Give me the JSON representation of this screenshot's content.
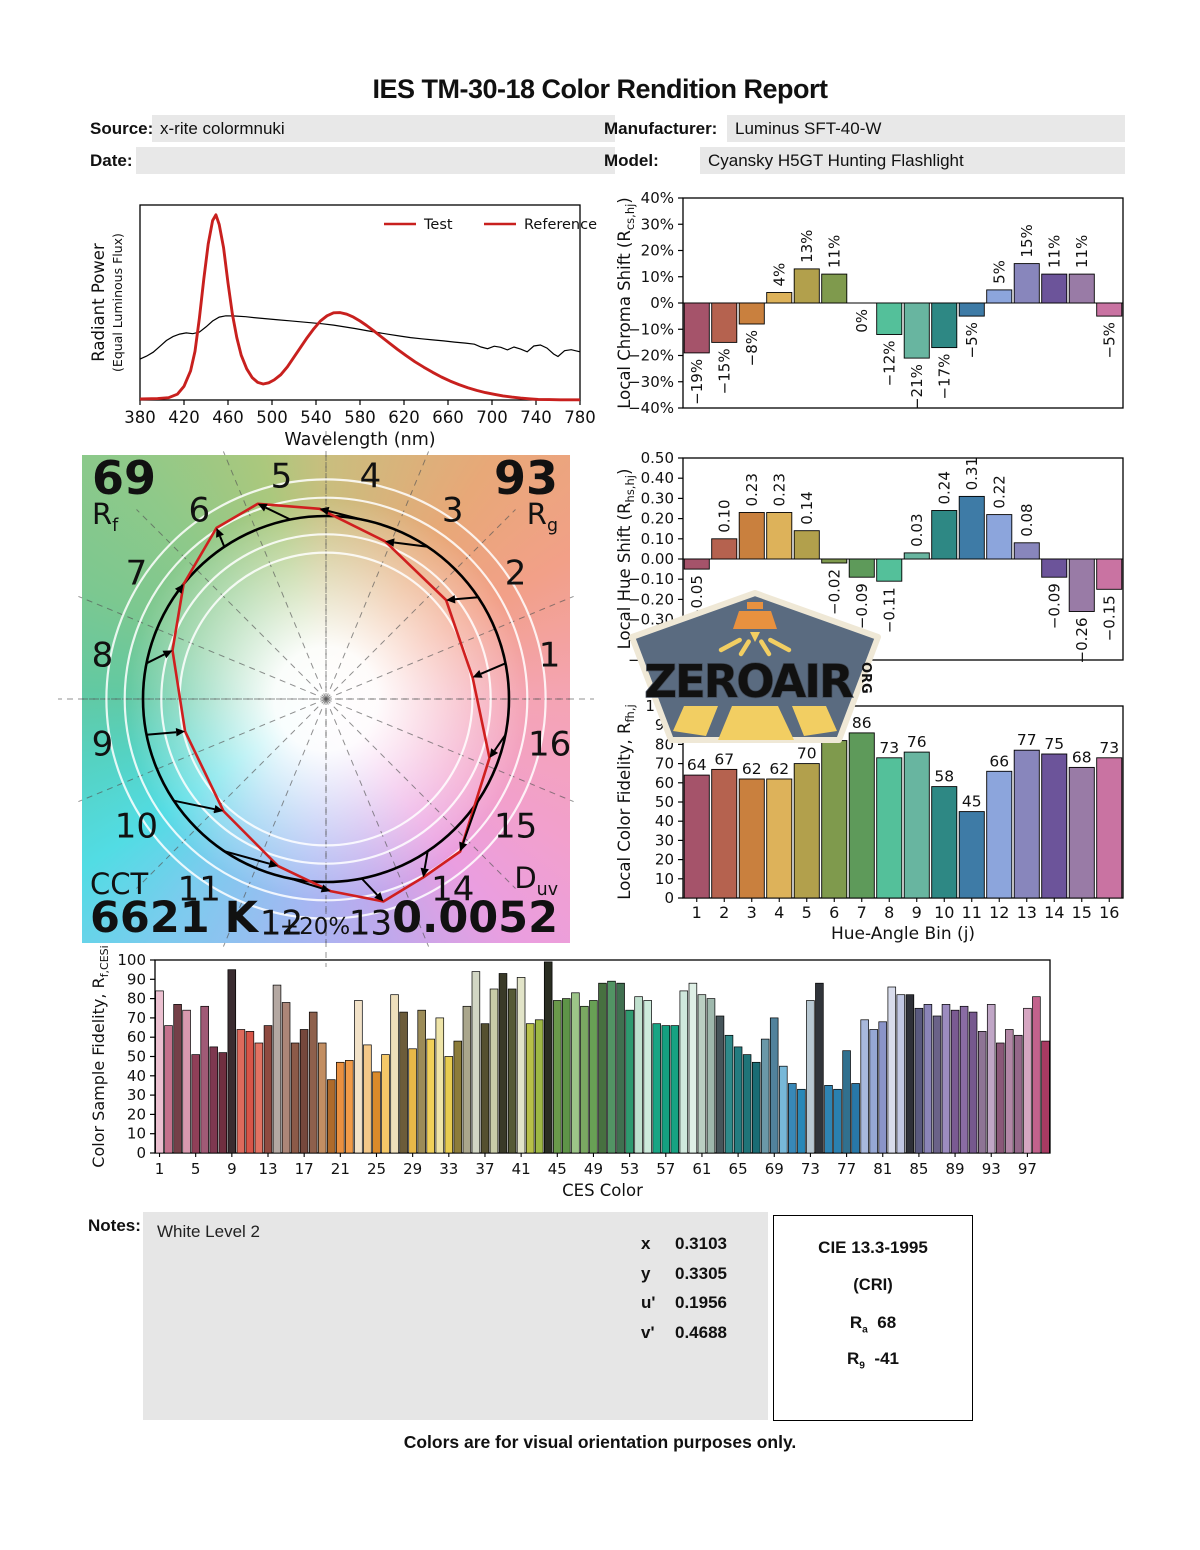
{
  "title": "IES TM-30-18 Color Rendition Report",
  "header": {
    "source_label": "Source:",
    "source_value": "x-rite colormnuki",
    "date_label": "Date:",
    "date_value": "",
    "manufacturer_label": "Manufacturer:",
    "manufacturer_value": "Luminus SFT-40-W",
    "model_label": "Model:",
    "model_value": "Cyansky H5GT Hunting Flashlight"
  },
  "colors": {
    "test_red": "#C8201E",
    "reference_black": "#000000",
    "field_bg": "#E8E8E8",
    "bin_palette": [
      "#A5536A",
      "#B5624F",
      "#C9803E",
      "#DDB25A",
      "#B2A04C",
      "#7F9A4D",
      "#5E9A5A",
      "#54C09A",
      "#68B5A0",
      "#2E8884",
      "#3E7BA6",
      "#8CA5DC",
      "#8886BC",
      "#6C549A",
      "#997BA6",
      "#C973A2"
    ]
  },
  "watermark": {
    "text": "ZEROAIR",
    "org": "ORG",
    "badge_bg": "#5A6B80",
    "badge_border": "#EFE8D6",
    "orange": "#E8913F",
    "yellow": "#F2CE62"
  },
  "chart_data": [
    {
      "name": "spectral_power_distribution",
      "type": "line",
      "xlabel": "Wavelength (nm)",
      "ylabel_line1": "Radiant Power",
      "ylabel_line2": "(Equal Luminous Flux)",
      "xlim": [
        380,
        780
      ],
      "x_ticks": [
        380,
        420,
        460,
        500,
        540,
        580,
        620,
        660,
        700,
        740,
        780
      ],
      "legend": [
        {
          "label": "Test",
          "color": "#C8201E"
        },
        {
          "label": "Reference",
          "color": "#000000"
        }
      ],
      "series": [
        {
          "name": "Test",
          "color": "#C8201E",
          "points": [
            [
              380,
              0.005
            ],
            [
              396,
              0.007
            ],
            [
              406,
              0.012
            ],
            [
              414,
              0.03
            ],
            [
              420,
              0.07
            ],
            [
              426,
              0.15
            ],
            [
              430,
              0.25
            ],
            [
              434,
              0.42
            ],
            [
              438,
              0.62
            ],
            [
              442,
              0.8
            ],
            [
              446,
              0.92
            ],
            [
              449,
              0.95
            ],
            [
              452,
              0.9
            ],
            [
              456,
              0.78
            ],
            [
              460,
              0.6
            ],
            [
              464,
              0.44
            ],
            [
              468,
              0.32
            ],
            [
              472,
              0.23
            ],
            [
              477,
              0.16
            ],
            [
              482,
              0.115
            ],
            [
              487,
              0.09
            ],
            [
              492,
              0.082
            ],
            [
              497,
              0.088
            ],
            [
              502,
              0.103
            ],
            [
              508,
              0.13
            ],
            [
              514,
              0.17
            ],
            [
              520,
              0.22
            ],
            [
              526,
              0.27
            ],
            [
              532,
              0.32
            ],
            [
              538,
              0.365
            ],
            [
              544,
              0.405
            ],
            [
              550,
              0.432
            ],
            [
              556,
              0.447
            ],
            [
              562,
              0.448
            ],
            [
              568,
              0.44
            ],
            [
              574,
              0.425
            ],
            [
              580,
              0.405
            ],
            [
              586,
              0.382
            ],
            [
              592,
              0.357
            ],
            [
              598,
              0.33
            ],
            [
              606,
              0.295
            ],
            [
              614,
              0.26
            ],
            [
              622,
              0.227
            ],
            [
              630,
              0.196
            ],
            [
              638,
              0.168
            ],
            [
              646,
              0.142
            ],
            [
              654,
              0.118
            ],
            [
              662,
              0.097
            ],
            [
              670,
              0.079
            ],
            [
              678,
              0.063
            ],
            [
              686,
              0.049
            ],
            [
              694,
              0.038
            ],
            [
              702,
              0.029
            ],
            [
              710,
              0.021
            ],
            [
              718,
              0.015
            ],
            [
              726,
              0.01
            ],
            [
              734,
              0.006
            ],
            [
              742,
              0.003
            ],
            [
              752,
              0.002
            ],
            [
              762,
              0.001
            ],
            [
              772,
              0.001
            ],
            [
              780,
              0.001
            ]
          ]
        },
        {
          "name": "Reference",
          "color": "#000000",
          "points": [
            [
              380,
              0.21
            ],
            [
              386,
              0.225
            ],
            [
              392,
              0.245
            ],
            [
              398,
              0.275
            ],
            [
              404,
              0.305
            ],
            [
              410,
              0.325
            ],
            [
              416,
              0.338
            ],
            [
              422,
              0.344
            ],
            [
              428,
              0.34
            ],
            [
              434,
              0.348
            ],
            [
              440,
              0.375
            ],
            [
              446,
              0.405
            ],
            [
              452,
              0.425
            ],
            [
              458,
              0.432
            ],
            [
              466,
              0.431
            ],
            [
              476,
              0.427
            ],
            [
              486,
              0.421
            ],
            [
              496,
              0.416
            ],
            [
              506,
              0.411
            ],
            [
              516,
              0.406
            ],
            [
              526,
              0.401
            ],
            [
              536,
              0.396
            ],
            [
              546,
              0.391
            ],
            [
              556,
              0.384
            ],
            [
              566,
              0.375
            ],
            [
              576,
              0.366
            ],
            [
              586,
              0.356
            ],
            [
              596,
              0.346
            ],
            [
              606,
              0.337
            ],
            [
              616,
              0.328
            ],
            [
              626,
              0.32
            ],
            [
              636,
              0.314
            ],
            [
              646,
              0.308
            ],
            [
              656,
              0.303
            ],
            [
              666,
              0.297
            ],
            [
              676,
              0.292
            ],
            [
              684,
              0.286
            ],
            [
              690,
              0.272
            ],
            [
              696,
              0.263
            ],
            [
              702,
              0.276
            ],
            [
              708,
              0.27
            ],
            [
              714,
              0.257
            ],
            [
              720,
              0.272
            ],
            [
              726,
              0.261
            ],
            [
              732,
              0.247
            ],
            [
              738,
              0.277
            ],
            [
              744,
              0.282
            ],
            [
              750,
              0.266
            ],
            [
              756,
              0.236
            ],
            [
              760,
              0.223
            ],
            [
              766,
              0.253
            ],
            [
              772,
              0.258
            ],
            [
              780,
              0.247
            ]
          ]
        }
      ]
    },
    {
      "name": "local_chroma_shift",
      "type": "bar",
      "ylabel_main": "Local Chroma Shift (R",
      "ylabel_sub": "cs,hj",
      "ylabel_end": ")",
      "ylim": [
        -40,
        40
      ],
      "ytick_step": 10,
      "unit": "%",
      "categories": [
        1,
        2,
        3,
        4,
        5,
        6,
        7,
        8,
        9,
        10,
        11,
        12,
        13,
        14,
        15,
        16
      ],
      "values": [
        -19,
        -15,
        -8,
        4,
        13,
        11,
        0,
        -12,
        -21,
        -17,
        -5,
        5,
        15,
        11,
        11,
        -5
      ]
    },
    {
      "name": "local_hue_shift",
      "type": "bar",
      "ylabel_main": "Local Hue Shift (R",
      "ylabel_sub": "hs,hj",
      "ylabel_end": ")",
      "ylim": [
        -0.5,
        0.5
      ],
      "ytick_step": 0.1,
      "decimals": 2,
      "categories": [
        1,
        2,
        3,
        4,
        5,
        6,
        7,
        8,
        9,
        10,
        11,
        12,
        13,
        14,
        15,
        16
      ],
      "values": [
        -0.05,
        0.1,
        0.23,
        0.23,
        0.14,
        -0.02,
        -0.09,
        -0.11,
        0.03,
        0.24,
        0.31,
        0.22,
        0.08,
        -0.09,
        -0.26,
        -0.15
      ]
    },
    {
      "name": "local_color_fidelity",
      "type": "bar",
      "ylabel_main": "Local Color Fidelity, R",
      "ylabel_sub": "fh,j",
      "ylabel_end": "",
      "xlabel": "Hue-Angle Bin (j)",
      "ylim": [
        0,
        100
      ],
      "ytick_step": 10,
      "categories": [
        1,
        2,
        3,
        4,
        5,
        6,
        7,
        8,
        9,
        10,
        11,
        12,
        13,
        14,
        15,
        16
      ],
      "values": [
        64,
        67,
        62,
        62,
        70,
        82,
        86,
        73,
        76,
        58,
        45,
        66,
        77,
        75,
        68,
        73
      ]
    },
    {
      "name": "color_sample_fidelity",
      "type": "bar",
      "ylabel_main": "Color Sample Fidelity, R",
      "ylabel_sub": "f,CESi",
      "ylabel_end": "",
      "xlabel": "CES Color",
      "ylim": [
        0,
        100
      ],
      "ytick_step": 10,
      "x_tick_labels": [
        1,
        5,
        9,
        13,
        17,
        21,
        25,
        29,
        33,
        37,
        41,
        45,
        49,
        53,
        57,
        61,
        65,
        69,
        73,
        77,
        81,
        85,
        89,
        93,
        97
      ],
      "values": [
        84,
        66,
        77,
        74,
        51,
        76,
        55,
        52,
        95,
        64,
        63,
        57,
        66,
        87,
        78,
        57,
        64,
        73,
        57,
        38,
        47,
        48,
        79,
        56,
        42,
        51,
        82,
        73,
        54,
        74,
        59,
        70,
        50,
        58,
        76,
        94,
        67,
        85,
        93,
        85,
        91,
        67,
        69,
        99,
        79,
        80,
        83,
        76,
        79,
        88,
        89,
        88,
        74,
        81,
        79,
        67,
        66,
        66,
        84,
        88,
        82,
        80,
        71,
        61,
        55,
        51,
        47,
        59,
        70,
        45,
        36,
        33,
        79,
        88,
        35,
        33,
        53,
        36,
        69,
        64,
        68,
        86,
        82,
        82,
        75,
        77,
        71,
        77,
        74,
        76,
        73,
        63,
        77,
        57,
        64,
        61,
        75,
        81,
        58
      ],
      "colors": [
        "#EBC0D0",
        "#C4718C",
        "#744048",
        "#D899AE",
        "#903F58",
        "#A05A76",
        "#7E3850",
        "#702F40",
        "#3A2C30",
        "#DE6A5C",
        "#D85548",
        "#E27262",
        "#8F4A40",
        "#B4A8A2",
        "#AC8678",
        "#8C5A48",
        "#76483C",
        "#8E604C",
        "#C28E62",
        "#AE6A2A",
        "#EA9040",
        "#F09A48",
        "#F2E2C8",
        "#F4C888",
        "#DA8A2A",
        "#F4C868",
        "#EEDFBC",
        "#6C5C3A",
        "#E8B848",
        "#9C8C58",
        "#F0D058",
        "#EEE4A8",
        "#E8CC50",
        "#8C7C3A",
        "#AAA68C",
        "#D2D6C4",
        "#555030",
        "#C8CCA8",
        "#3A3A28",
        "#565A35",
        "#E2E4C8",
        "#B8C048",
        "#9EB844",
        "#2A2E22",
        "#6A9A4A",
        "#5E9448",
        "#9CC488",
        "#7AA862",
        "#68A055",
        "#477040",
        "#529464",
        "#407050",
        "#2E9A70",
        "#BFE0CE",
        "#CDEBDC",
        "#18A584",
        "#14A080",
        "#16A282",
        "#CFE8DC",
        "#DFF0E6",
        "#BACFC2",
        "#9EB8AC",
        "#46555A",
        "#2E8A8A",
        "#237C80",
        "#1F7478",
        "#1A6C74",
        "#6A98A8",
        "#51829C",
        "#78B8D8",
        "#3888B8",
        "#2888B8",
        "#B8C8D2",
        "#30343A",
        "#2E84B4",
        "#2A80B0",
        "#31708E",
        "#2878A8",
        "#A8B8DC",
        "#96A8D4",
        "#8A94C8",
        "#D8DCEC",
        "#C2C8E4",
        "#2E3038",
        "#5A5A80",
        "#8A84B8",
        "#6A6288",
        "#9C8CC0",
        "#7A5A92",
        "#8A6CA4",
        "#76588E",
        "#8E7495",
        "#C0A6C6",
        "#8A5878",
        "#B287A6",
        "#95688A",
        "#D6A6C2",
        "#C2628C",
        "#A83A62"
      ]
    },
    {
      "name": "color_vector_graphic",
      "type": "polar",
      "rf": 69,
      "rf_label_main": "R",
      "rf_label_sub": "f",
      "rg": 93,
      "rg_label_main": "R",
      "rg_label_sub": "g",
      "cct_label": "CCT",
      "cct": "6621 K",
      "duv_label_main": "D",
      "duv_label_sub": "uv",
      "duv": "0.0052",
      "bins": [
        1,
        2,
        3,
        4,
        5,
        6,
        7,
        8,
        9,
        10,
        11,
        12,
        13,
        14,
        15,
        16
      ],
      "plus_label": "+20%",
      "ring_fractions": [
        0.8,
        0.9,
        1.1,
        1.2
      ]
    }
  ],
  "notes": {
    "label": "Notes:",
    "value": "White Level 2"
  },
  "chromaticity": {
    "rows": [
      {
        "label": "x",
        "value": "0.3103"
      },
      {
        "label": "y",
        "value": "0.3305"
      },
      {
        "label": "u'",
        "value": "0.1956"
      },
      {
        "label": "v'",
        "value": "0.4688"
      }
    ]
  },
  "cri_box": {
    "title": "CIE 13.3-1995",
    "subtitle": "(CRI)",
    "ra_main": "R",
    "ra_sub": "a",
    "ra_value": "68",
    "r9_main": "R",
    "r9_sub": "9",
    "r9_value": "-41"
  },
  "footer": "Colors are for visual orientation purposes only."
}
